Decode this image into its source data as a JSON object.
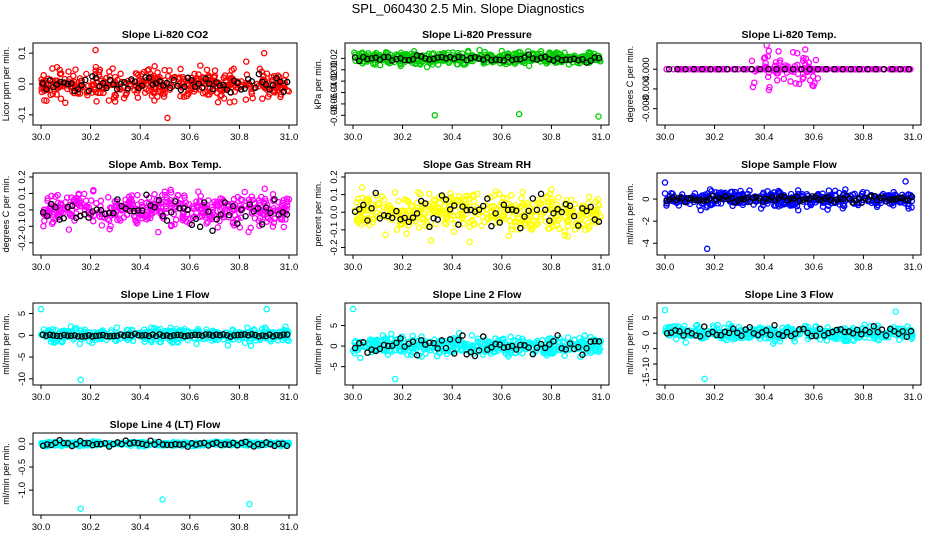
{
  "page_title": "SPL_060430  2.5 Min. Slope Diagnostics",
  "chart_data": [
    {
      "type": "scatter",
      "title": "Slope Li-820 CO2",
      "ylabel": "Licor ppm per min.",
      "color": "#ff0000",
      "xlim": [
        30.0,
        31.0
      ],
      "ylim": [
        -0.12,
        0.12
      ],
      "xticks": [
        30.0,
        30.2,
        30.4,
        30.6,
        30.8,
        31.0
      ],
      "xtick_labels": [
        "30.0",
        "30.2",
        "30.4",
        "30.6",
        "30.8",
        "31.0"
      ],
      "yticks": [
        -0.1,
        0.0,
        0.1
      ],
      "ytick_labels": [
        "-0.1",
        "0.0",
        "0.1"
      ],
      "series": [
        {
          "name": "slope",
          "n": 420,
          "center": 0.0,
          "spread": 0.035,
          "outliers": [
            [
              30.22,
              0.11
            ],
            [
              30.51,
              -0.11
            ],
            [
              30.9,
              0.1
            ]
          ]
        },
        {
          "name": "selected",
          "color": "#000000",
          "n": 70,
          "center": 0.0,
          "spread": 0.02
        }
      ]
    },
    {
      "type": "scatter",
      "title": "Slope Li-820 Pressure",
      "ylabel": "kPa per min.",
      "color": "#00cc00",
      "xlim": [
        30.0,
        31.0
      ],
      "ylim": [
        -0.09,
        0.04
      ],
      "xticks": [
        30.0,
        30.2,
        30.4,
        30.6,
        30.8,
        31.0
      ],
      "xtick_labels": [
        "30.0",
        "30.2",
        "30.4",
        "30.6",
        "30.8",
        "31.0"
      ],
      "yticks": [
        -0.08,
        -0.06,
        -0.04,
        -0.02,
        0.0,
        0.02
      ],
      "ytick_labels": [
        "-0.08",
        "-0.06",
        "-0.04",
        "-0.02",
        "0.00",
        "0.02"
      ],
      "series": [
        {
          "name": "slope",
          "n": 420,
          "center": 0.02,
          "spread": 0.008,
          "outliers": [
            [
              30.33,
              -0.08
            ],
            [
              30.67,
              -0.078
            ],
            [
              30.99,
              -0.082
            ]
          ]
        },
        {
          "name": "selected",
          "color": "#000000",
          "n": 60,
          "center": 0.02,
          "spread": 0.004
        }
      ]
    },
    {
      "type": "scatter",
      "title": "Slope Li-820 Temp.",
      "ylabel": "degrees C per min.",
      "color": "#ff00ff",
      "xlim": [
        30.0,
        31.0
      ],
      "ylim": [
        -0.0105,
        0.0045
      ],
      "xticks": [
        30.0,
        30.2,
        30.4,
        30.6,
        30.8,
        31.0
      ],
      "xtick_labels": [
        "30.0",
        "30.2",
        "30.4",
        "30.6",
        "30.8",
        "31.0"
      ],
      "yticks": [
        -0.008,
        -0.004,
        0.0
      ],
      "ytick_labels": [
        "-0.008",
        "-0.004",
        "0.000"
      ],
      "series": [
        {
          "name": "slope",
          "n": 200,
          "center": 0.0,
          "spread": 0.0,
          "outliers": []
        },
        {
          "name": "burst",
          "n": 70,
          "center": 0.0,
          "spread": 0.003,
          "xrange": [
            30.35,
            30.62
          ]
        },
        {
          "name": "selected",
          "color": "#000000",
          "n": 30,
          "center": 0.0,
          "spread": 0.0
        }
      ]
    },
    {
      "type": "scatter",
      "title": "Slope Amb. Box Temp.",
      "ylabel": "degrees C per min.",
      "color": "#ff00ff",
      "xlim": [
        30.0,
        31.0
      ],
      "ylim": [
        -0.25,
        0.2
      ],
      "xticks": [
        30.0,
        30.2,
        30.4,
        30.6,
        30.8,
        31.0
      ],
      "xtick_labels": [
        "30.0",
        "30.2",
        "30.4",
        "30.6",
        "30.8",
        "31.0"
      ],
      "yticks": [
        -0.2,
        -0.1,
        0.0,
        0.1,
        0.2
      ],
      "ytick_labels": [
        "-0.2",
        "-0.1",
        "0.0",
        "0.1",
        "0.2"
      ],
      "series": [
        {
          "name": "slope",
          "n": 420,
          "center": 0.0,
          "spread": 0.07,
          "outliers": []
        },
        {
          "name": "selected",
          "color": "#000000",
          "n": 60,
          "center": 0.0,
          "spread": 0.06
        }
      ]
    },
    {
      "type": "scatter",
      "title": "Slope Gas Stream RH",
      "ylabel": "percent per min.",
      "color": "#ffff00",
      "xlim": [
        30.0,
        31.0
      ],
      "ylim": [
        -0.22,
        0.2
      ],
      "xticks": [
        30.0,
        30.2,
        30.4,
        30.6,
        30.8,
        31.0
      ],
      "xtick_labels": [
        "30.0",
        "30.2",
        "30.4",
        "30.6",
        "30.8",
        "31.0"
      ],
      "yticks": [
        -0.2,
        -0.1,
        0.0,
        0.1,
        0.2
      ],
      "ytick_labels": [
        "-0.2",
        "-0.1",
        "0.0",
        "0.1",
        "0.2"
      ],
      "series": [
        {
          "name": "slope",
          "n": 420,
          "center": 0.0,
          "spread": 0.08,
          "outliers": []
        },
        {
          "name": "selected",
          "color": "#000000",
          "n": 60,
          "center": 0.0,
          "spread": 0.07
        }
      ]
    },
    {
      "type": "scatter",
      "title": "Slope Sample Flow",
      "ylabel": "ml/min per min.",
      "color": "#0000ff",
      "xlim": [
        30.0,
        31.0
      ],
      "ylim": [
        -4.7,
        2.0
      ],
      "xticks": [
        30.0,
        30.2,
        30.4,
        30.6,
        30.8,
        31.0
      ],
      "xtick_labels": [
        "30.0",
        "30.2",
        "30.4",
        "30.6",
        "30.8",
        "31.0"
      ],
      "yticks": [
        -4,
        -2,
        0
      ],
      "ytick_labels": [
        "-4",
        "-2",
        "0"
      ],
      "series": [
        {
          "name": "slope",
          "n": 420,
          "center": 0.0,
          "spread": 0.5,
          "outliers": [
            [
              30.17,
              -4.5
            ],
            [
              30.0,
              1.5
            ],
            [
              30.97,
              1.6
            ]
          ]
        },
        {
          "name": "selected",
          "color": "#000000",
          "n": 80,
          "center": 0.0,
          "spread": 0.2
        }
      ]
    },
    {
      "type": "scatter",
      "title": "Slope Line 1 Flow",
      "ylabel": "ml/min per min.",
      "color": "#00ffff",
      "xlim": [
        30.0,
        31.0
      ],
      "ylim": [
        -10.5,
        6.5
      ],
      "xticks": [
        30.0,
        30.2,
        30.4,
        30.6,
        30.8,
        31.0
      ],
      "xtick_labels": [
        "30.0",
        "30.2",
        "30.4",
        "30.6",
        "30.8",
        "31.0"
      ],
      "yticks": [
        -10,
        -5,
        0,
        5
      ],
      "ytick_labels": [
        "-10",
        "-5",
        "0",
        "5"
      ],
      "series": [
        {
          "name": "slope",
          "n": 420,
          "center": 0.0,
          "spread": 1.2,
          "outliers": [
            [
              30.16,
              -10.2
            ],
            [
              30.0,
              6.0
            ],
            [
              30.91,
              6.0
            ]
          ]
        },
        {
          "name": "selected",
          "color": "#000000",
          "n": 70,
          "center": 0.0,
          "spread": 0.2
        }
      ]
    },
    {
      "type": "scatter",
      "title": "Slope Line 2 Flow",
      "ylabel": "ml/min per min.",
      "color": "#00ffff",
      "xlim": [
        30.0,
        31.0
      ],
      "ylim": [
        -8.5,
        9.5
      ],
      "xticks": [
        30.0,
        30.2,
        30.4,
        30.6,
        30.8,
        31.0
      ],
      "xtick_labels": [
        "30.0",
        "30.2",
        "30.4",
        "30.6",
        "30.8",
        "31.0"
      ],
      "yticks": [
        -5,
        0,
        5
      ],
      "ytick_labels": [
        "-5",
        "0",
        "5"
      ],
      "series": [
        {
          "name": "slope",
          "n": 420,
          "center": 0.0,
          "spread": 1.6,
          "outliers": [
            [
              30.0,
              9.0
            ],
            [
              30.17,
              -8.0
            ]
          ]
        },
        {
          "name": "selected",
          "color": "#000000",
          "n": 60,
          "center": 0.0,
          "spread": 1.5
        }
      ]
    },
    {
      "type": "scatter",
      "title": "Slope Line 3 Flow",
      "ylabel": "ml/min per min.",
      "color": "#00ffff",
      "xlim": [
        30.0,
        31.0
      ],
      "ylim": [
        -15.5,
        8.5
      ],
      "xticks": [
        30.0,
        30.2,
        30.4,
        30.6,
        30.8,
        31.0
      ],
      "xtick_labels": [
        "30.0",
        "30.2",
        "30.4",
        "30.6",
        "30.8",
        "31.0"
      ],
      "yticks": [
        -15,
        -10,
        -5,
        0,
        5
      ],
      "ytick_labels": [
        "-15",
        "-10",
        "-5",
        "0",
        "5"
      ],
      "series": [
        {
          "name": "slope",
          "n": 420,
          "center": 0.0,
          "spread": 1.6,
          "outliers": [
            [
              30.16,
              -14.8
            ],
            [
              30.0,
              7.5
            ],
            [
              30.93,
              7.0
            ]
          ]
        },
        {
          "name": "selected",
          "color": "#000000",
          "n": 60,
          "center": 0.0,
          "spread": 1.5
        }
      ]
    },
    {
      "type": "scatter",
      "title": "Slope Line 4 (LT) Flow",
      "ylabel": "ml/min per min.",
      "color": "#00ffff",
      "xlim": [
        30.0,
        31.0
      ],
      "ylim": [
        -1.45,
        0.15
      ],
      "xticks": [
        30.0,
        30.2,
        30.4,
        30.6,
        30.8,
        31.0
      ],
      "xtick_labels": [
        "30.0",
        "30.2",
        "30.4",
        "30.6",
        "30.8",
        "31.0"
      ],
      "yticks": [
        -1.0,
        -0.5,
        0.0
      ],
      "ytick_labels": [
        "-1.0",
        "-0.5",
        "0.0"
      ],
      "series": [
        {
          "name": "slope",
          "n": 420,
          "center": 0.0,
          "spread": 0.03,
          "outliers": [
            [
              30.16,
              -1.4
            ],
            [
              30.49,
              -1.2
            ],
            [
              30.84,
              -1.3
            ]
          ]
        },
        {
          "name": "selected",
          "color": "#000000",
          "n": 60,
          "center": 0.0,
          "spread": 0.04
        }
      ]
    }
  ]
}
